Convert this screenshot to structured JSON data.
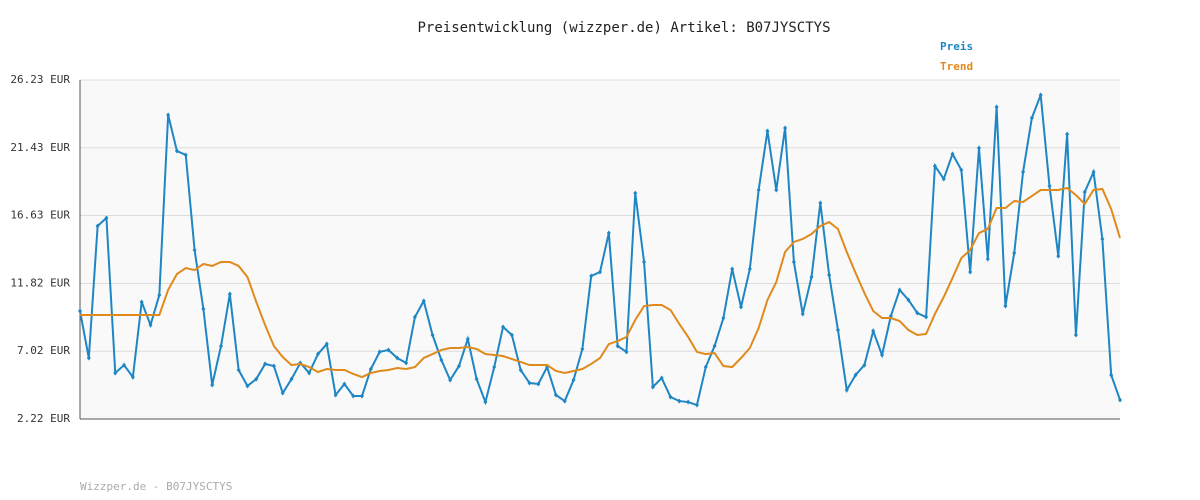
{
  "chart_data": {
    "type": "line",
    "title": "Preisentwicklung (wizzper.de) Artikel: B07JYSCTYS",
    "footer": "Wizzper.de - B07JYSCTYS",
    "legend": "top-right",
    "grid": true,
    "markers": true,
    "ylim": [
      2.22,
      26.23
    ],
    "yticks": [
      {
        "value": 2.22,
        "label": "2.22 EUR"
      },
      {
        "value": 7.02,
        "label": "7.02 EUR"
      },
      {
        "value": 11.82,
        "label": "11.82 EUR"
      },
      {
        "value": 16.63,
        "label": "16.63 EUR"
      },
      {
        "value": 21.43,
        "label": "21.43 EUR"
      },
      {
        "value": 26.23,
        "label": "26.23 EUR"
      }
    ],
    "series": [
      {
        "name": "Preis",
        "color": "#1f86c4",
        "markers": true,
        "values": [
          9.87,
          6.54,
          15.89,
          16.46,
          5.48,
          6.04,
          5.19,
          10.51,
          8.88,
          11.0,
          23.75,
          21.2,
          20.92,
          14.19,
          10.01,
          4.63,
          7.39,
          11.07,
          5.69,
          4.56,
          5.05,
          6.12,
          5.97,
          4.06,
          5.05,
          6.19,
          5.48,
          6.82,
          7.53,
          3.92,
          4.7,
          3.85,
          3.85,
          5.76,
          6.97,
          7.11,
          6.54,
          6.19,
          9.44,
          10.58,
          8.17,
          6.4,
          4.98,
          5.97,
          7.89,
          5.05,
          3.42,
          5.9,
          8.74,
          8.17,
          5.69,
          4.77,
          4.7,
          5.9,
          3.92,
          3.49,
          4.98,
          7.18,
          12.35,
          12.63,
          15.39,
          7.39,
          6.97,
          18.22,
          13.34,
          4.49,
          5.12,
          3.78,
          3.49,
          3.42,
          3.21,
          5.9,
          7.39,
          9.37,
          12.84,
          10.15,
          12.84,
          18.44,
          22.62,
          18.44,
          22.83,
          13.34,
          9.66,
          12.28,
          17.52,
          12.42,
          8.52,
          4.27,
          5.34,
          6.04,
          8.45,
          6.75,
          9.51,
          11.36,
          10.65,
          9.73,
          9.44,
          20.14,
          19.22,
          20.99,
          19.85,
          12.63,
          21.41,
          13.55,
          24.32,
          10.22,
          13.98,
          19.71,
          23.54,
          25.17,
          18.72,
          13.76,
          22.4,
          8.17,
          18.3,
          19.71,
          14.97,
          5.34,
          3.57
        ]
      },
      {
        "name": "Trend",
        "color": "#e08a1e",
        "markers": false,
        "values": [
          9.59,
          9.59,
          9.59,
          9.59,
          9.59,
          9.59,
          9.59,
          9.59,
          9.59,
          9.59,
          11.36,
          12.49,
          12.91,
          12.77,
          13.2,
          13.06,
          13.34,
          13.34,
          13.06,
          12.28,
          10.51,
          8.88,
          7.39,
          6.61,
          6.04,
          6.12,
          5.9,
          5.55,
          5.76,
          5.69,
          5.69,
          5.41,
          5.19,
          5.48,
          5.62,
          5.69,
          5.83,
          5.76,
          5.9,
          6.54,
          6.82,
          7.11,
          7.25,
          7.25,
          7.32,
          7.18,
          6.82,
          6.75,
          6.68,
          6.47,
          6.26,
          6.04,
          6.04,
          6.04,
          5.62,
          5.48,
          5.62,
          5.76,
          6.12,
          6.54,
          7.53,
          7.74,
          8.03,
          9.23,
          10.22,
          10.29,
          10.29,
          9.94,
          8.95,
          8.03,
          6.97,
          6.82,
          6.89,
          5.97,
          5.9,
          6.54,
          7.25,
          8.66,
          10.65,
          11.92,
          14.05,
          14.76,
          14.97,
          15.32,
          15.89,
          16.17,
          15.68,
          14.05,
          12.56,
          11.14,
          9.87,
          9.37,
          9.37,
          9.16,
          8.52,
          8.17,
          8.24,
          9.66,
          10.86,
          12.21,
          13.62,
          14.19,
          15.39,
          15.68,
          17.16,
          17.16,
          17.66,
          17.59,
          18.01,
          18.44,
          18.44,
          18.44,
          18.58,
          18.08,
          17.45,
          18.44,
          18.51,
          17.09,
          15.04
        ]
      }
    ]
  }
}
